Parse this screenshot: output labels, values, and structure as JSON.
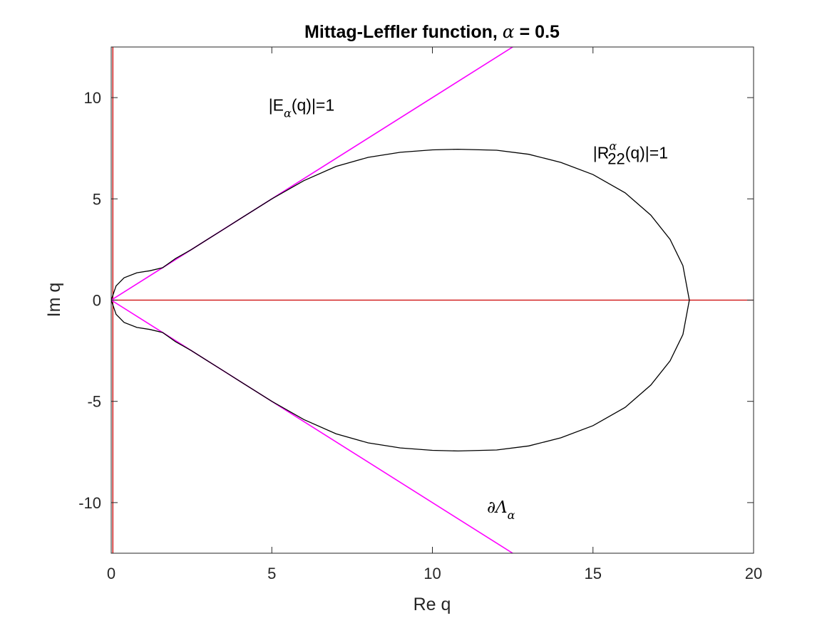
{
  "chart_data": {
    "type": "line",
    "title_prefix": "Mittag-Leffler function, ",
    "title_symbol": "α",
    "title_suffix": " = 0.5",
    "xlabel": "Re q",
    "ylabel": "Im q",
    "xlim": [
      0,
      20
    ],
    "ylim": [
      -12.5,
      12.5
    ],
    "xticks": [
      0,
      5,
      10,
      15,
      20
    ],
    "yticks": [
      -10,
      -5,
      0,
      5,
      10
    ],
    "xtick_labels": [
      "0",
      "5",
      "10",
      "15",
      "20"
    ],
    "ytick_labels": [
      "-10",
      "-5",
      "0",
      "5",
      "10"
    ],
    "grid": false,
    "box": true,
    "series": [
      {
        "key": "real_axis",
        "color": "#cc0000",
        "x": [
          0,
          20
        ],
        "y": [
          0,
          0
        ]
      },
      {
        "key": "imag_axis",
        "color": "#cc0000",
        "x": [
          0.05,
          0.05
        ],
        "y": [
          -12.5,
          12.5
        ]
      },
      {
        "key": "E_alpha_level",
        "color": "#3333ff",
        "x": [
          0,
          12.5
        ],
        "y": [
          0,
          12.5
        ]
      },
      {
        "key": "boundary_lambda_alpha",
        "color": "#ff00ff",
        "x": [
          0,
          12.5,
          0,
          12.5
        ],
        "y": [
          0,
          12.5,
          0,
          -12.5
        ]
      },
      {
        "key": "R22_level",
        "color": "#000000",
        "x": [
          0,
          0.15,
          0.4,
          0.8,
          1.2,
          1.6,
          2.0,
          2.5,
          3.0,
          3.5,
          4.0,
          5.0,
          6.0,
          7.0,
          8.0,
          9.0,
          10.0,
          10.8,
          12.0,
          13.0,
          14.0,
          15.0,
          16.0,
          16.8,
          17.4,
          17.8,
          18.0
        ],
        "y": [
          0,
          0.7,
          1.1,
          1.35,
          1.45,
          1.6,
          2.05,
          2.5,
          3.0,
          3.5,
          4.0,
          5.0,
          5.9,
          6.6,
          7.05,
          7.3,
          7.42,
          7.45,
          7.4,
          7.2,
          6.8,
          6.2,
          5.3,
          4.2,
          3.0,
          1.7,
          0
        ]
      }
    ],
    "annotations": {
      "e_alpha": {
        "prefix": "|E",
        "sub": "α",
        "suffix": "(q)|=1",
        "x": 4.9,
        "y": 9.35
      },
      "r22": {
        "prefix": "|R",
        "sup": "α",
        "sub": "22",
        "suffix": "(q)|=1",
        "x": 15.0,
        "y": 7.0
      },
      "lambda": {
        "text": "∂Λ",
        "sub": "α",
        "x": 11.7,
        "y": -10.5
      }
    }
  }
}
